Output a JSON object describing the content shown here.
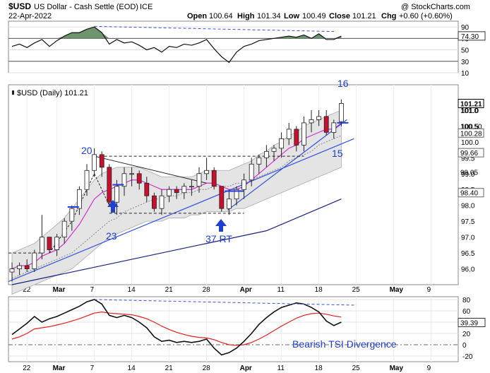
{
  "header": {
    "symbol": "$USD",
    "name": "US Dollar - Cash Settle (EOD)",
    "exchange": "ICE",
    "date": "22-Apr-2022",
    "watermark": "@ StockCharts.com",
    "open_label": "Open",
    "open": "100.64",
    "high_label": "High",
    "high": "101.34",
    "low_label": "Low",
    "low": "100.49",
    "close_label": "Close",
    "close": "101.21",
    "chg_label": "Chg",
    "chg": "+0.60 (+0.60%)"
  },
  "chart_data": [
    {
      "type": "line",
      "panel": "rsi",
      "ylim": [
        10,
        100
      ],
      "yticks": [
        90,
        70,
        50,
        30,
        10
      ],
      "current_value_label": "74.30",
      "current_value": 74.3,
      "reference_lines": [
        70,
        30
      ],
      "x": [
        "Feb-17",
        "Feb-18",
        "Feb-22",
        "Feb-23",
        "Feb-24",
        "Feb-25",
        "Feb-28",
        "Mar-01",
        "Mar-02",
        "Mar-03",
        "Mar-04",
        "Mar-07",
        "Mar-08",
        "Mar-09",
        "Mar-10",
        "Mar-11",
        "Mar-14",
        "Mar-15",
        "Mar-16",
        "Mar-17",
        "Mar-18",
        "Mar-21",
        "Mar-22",
        "Mar-23",
        "Mar-24",
        "Mar-25",
        "Mar-28",
        "Mar-29",
        "Mar-30",
        "Mar-31",
        "Apr-01",
        "Apr-04",
        "Apr-05",
        "Apr-06",
        "Apr-07",
        "Apr-08",
        "Apr-11",
        "Apr-12",
        "Apr-13",
        "Apr-14",
        "Apr-18",
        "Apr-19",
        "Apr-20",
        "Apr-21",
        "Apr-22"
      ],
      "values": [
        56,
        60,
        54,
        62,
        68,
        56,
        66,
        74,
        80,
        80,
        86,
        90,
        80,
        60,
        68,
        62,
        64,
        58,
        50,
        54,
        46,
        56,
        54,
        60,
        58,
        62,
        68,
        52,
        38,
        28,
        46,
        56,
        60,
        66,
        68,
        70,
        72,
        74,
        72,
        76,
        70,
        78,
        68,
        68,
        74
      ],
      "fill_above": 70
    },
    {
      "type": "candlestick",
      "panel": "price",
      "title": "$USD (Daily) 101.21",
      "ylim": [
        95.5,
        101.8
      ],
      "yticks": [
        96.0,
        96.5,
        97.0,
        97.5,
        98.0,
        98.5,
        99.0,
        99.5,
        100.0,
        100.5,
        101.0
      ],
      "xtick_labels": [
        "22",
        "Mar",
        "7",
        "14",
        "21",
        "28",
        "Apr",
        "11",
        "18",
        "25",
        "May",
        "9"
      ],
      "x": [
        "Feb-17",
        "Feb-18",
        "Feb-22",
        "Feb-23",
        "Feb-24",
        "Feb-25",
        "Feb-28",
        "Mar-01",
        "Mar-02",
        "Mar-03",
        "Mar-04",
        "Mar-07",
        "Mar-08",
        "Mar-09",
        "Mar-10",
        "Mar-11",
        "Mar-14",
        "Mar-15",
        "Mar-16",
        "Mar-17",
        "Mar-18",
        "Mar-21",
        "Mar-22",
        "Mar-23",
        "Mar-24",
        "Mar-25",
        "Mar-28",
        "Mar-29",
        "Mar-30",
        "Mar-31",
        "Apr-01",
        "Apr-04",
        "Apr-05",
        "Apr-06",
        "Apr-07",
        "Apr-08",
        "Apr-11",
        "Apr-12",
        "Apr-13",
        "Apr-14",
        "Apr-18",
        "Apr-19",
        "Apr-20",
        "Apr-21",
        "Apr-22"
      ],
      "ohlc": [
        [
          95.9,
          96.2,
          95.6,
          96.0
        ],
        [
          96.0,
          96.2,
          95.8,
          96.1
        ],
        [
          96.1,
          96.3,
          95.9,
          96.0
        ],
        [
          96.0,
          96.6,
          95.9,
          96.5
        ],
        [
          96.5,
          97.7,
          96.3,
          97.0
        ],
        [
          97.0,
          97.0,
          96.5,
          96.6
        ],
        [
          96.6,
          97.1,
          96.4,
          97.0
        ],
        [
          97.0,
          97.6,
          96.8,
          97.5
        ],
        [
          97.5,
          98.0,
          97.2,
          97.9
        ],
        [
          97.9,
          98.6,
          97.7,
          98.5
        ],
        [
          98.5,
          99.3,
          98.3,
          99.1
        ],
        [
          99.1,
          99.8,
          98.9,
          99.6
        ],
        [
          99.6,
          99.7,
          98.9,
          99.2
        ],
        [
          99.2,
          99.3,
          98.0,
          98.1
        ],
        [
          98.1,
          98.8,
          97.7,
          98.6
        ],
        [
          98.6,
          99.2,
          98.3,
          99.0
        ],
        [
          99.0,
          99.2,
          98.6,
          99.0
        ],
        [
          99.0,
          99.1,
          98.5,
          98.7
        ],
        [
          98.7,
          98.9,
          98.1,
          98.3
        ],
        [
          98.3,
          98.4,
          97.8,
          97.9
        ],
        [
          97.9,
          98.5,
          97.7,
          98.3
        ],
        [
          98.3,
          98.6,
          98.1,
          98.5
        ],
        [
          98.5,
          98.6,
          98.2,
          98.4
        ],
        [
          98.4,
          98.7,
          98.2,
          98.6
        ],
        [
          98.6,
          98.8,
          98.3,
          98.6
        ],
        [
          98.6,
          99.2,
          98.4,
          99.0
        ],
        [
          99.0,
          99.5,
          98.8,
          99.1
        ],
        [
          99.1,
          99.2,
          98.5,
          98.6
        ],
        [
          98.6,
          98.6,
          97.8,
          97.9
        ],
        [
          97.9,
          98.5,
          97.7,
          98.2
        ],
        [
          98.2,
          98.6,
          98.0,
          98.5
        ],
        [
          98.5,
          99.0,
          98.2,
          98.8
        ],
        [
          98.8,
          99.5,
          98.6,
          99.3
        ],
        [
          99.3,
          99.6,
          99.0,
          99.5
        ],
        [
          99.5,
          99.9,
          99.2,
          99.7
        ],
        [
          99.7,
          99.9,
          99.4,
          99.8
        ],
        [
          99.8,
          100.3,
          99.5,
          100.1
        ],
        [
          100.1,
          100.6,
          99.9,
          100.4
        ],
        [
          100.4,
          100.5,
          99.7,
          99.9
        ],
        [
          99.9,
          100.8,
          99.7,
          100.6
        ],
        [
          100.6,
          101.0,
          100.3,
          100.7
        ],
        [
          100.7,
          101.0,
          100.5,
          100.8
        ],
        [
          100.8,
          101.0,
          100.2,
          100.3
        ],
        [
          100.3,
          100.7,
          100.1,
          100.6
        ],
        [
          100.64,
          101.34,
          100.49,
          101.21
        ]
      ],
      "ma_short": [
        96.0,
        96.1,
        96.1,
        96.2,
        96.4,
        96.5,
        96.6,
        96.8,
        97.1,
        97.4,
        97.8,
        98.2,
        98.4,
        98.5,
        98.6,
        98.7,
        98.8,
        98.8,
        98.7,
        98.6,
        98.5,
        98.5,
        98.5,
        98.5,
        98.5,
        98.6,
        98.7,
        98.7,
        98.6,
        98.5,
        98.5,
        98.6,
        98.8,
        99.0,
        99.2,
        99.4,
        99.6,
        99.8,
        99.9,
        100.1,
        100.2,
        100.3,
        100.4,
        100.4,
        100.6
      ],
      "ma_mid": [
        95.7,
        95.8,
        95.9,
        96.0,
        96.1,
        96.2,
        96.3,
        96.4,
        96.5,
        96.7,
        96.9,
        97.1,
        97.3,
        97.5,
        97.6,
        97.8,
        97.9,
        98.0,
        98.1,
        98.2,
        98.2,
        98.3,
        98.3,
        98.4,
        98.4,
        98.5,
        98.5,
        98.6,
        98.6,
        98.6,
        98.7,
        98.7,
        98.8,
        98.9,
        99.0,
        99.1,
        99.2,
        99.4,
        99.5,
        99.6,
        99.7,
        99.9,
        100.0,
        100.1,
        100.2
      ],
      "ma_long": [
        95.5,
        95.55,
        95.6,
        95.65,
        95.7,
        95.75,
        95.8,
        95.85,
        95.9,
        95.95,
        96.0,
        96.05,
        96.1,
        96.15,
        96.2,
        96.25,
        96.3,
        96.35,
        96.4,
        96.45,
        96.5,
        96.55,
        96.6,
        96.65,
        96.7,
        96.75,
        96.8,
        96.85,
        96.9,
        96.95,
        97.0,
        97.05,
        97.1,
        97.15,
        97.2,
        97.3,
        97.4,
        97.5,
        97.6,
        97.7,
        97.8,
        97.9,
        98.0,
        98.1,
        98.2
      ],
      "band_upper": [
        96.5,
        96.6,
        96.7,
        96.8,
        97.0,
        97.2,
        97.4,
        97.6,
        97.9,
        98.2,
        98.5,
        98.8,
        99.0,
        99.1,
        99.2,
        99.2,
        99.2,
        99.2,
        99.1,
        99.0,
        98.9,
        98.9,
        98.9,
        98.9,
        98.9,
        99.0,
        99.1,
        99.1,
        99.1,
        99.1,
        99.2,
        99.3,
        99.4,
        99.6,
        99.7,
        99.9,
        100.0,
        100.2,
        100.3,
        100.5,
        100.6,
        100.7,
        100.8,
        100.9,
        101.0
      ],
      "band_lower": [
        95.2,
        95.3,
        95.4,
        95.5,
        95.6,
        95.7,
        95.8,
        95.9,
        96.0,
        96.2,
        96.4,
        96.6,
        96.8,
        97.0,
        97.1,
        97.2,
        97.3,
        97.4,
        97.5,
        97.5,
        97.5,
        97.6,
        97.6,
        97.6,
        97.7,
        97.7,
        97.8,
        97.8,
        97.8,
        97.8,
        97.9,
        97.9,
        98.0,
        98.1,
        98.2,
        98.3,
        98.4,
        98.5,
        98.6,
        98.7,
        98.8,
        98.9,
        99.0,
        99.1,
        99.2
      ],
      "price_labels": [
        "101.21",
        "101.0",
        "100.50",
        "100.28",
        "99.66",
        "99.05",
        "98.40"
      ],
      "annotations": [
        "20",
        "23",
        "37 RT",
        "16",
        "15"
      ]
    },
    {
      "type": "line",
      "panel": "tsi",
      "ylim": [
        -30,
        85
      ],
      "yticks": [
        80,
        60,
        40,
        20,
        0,
        -20
      ],
      "current_value_label": "39.39",
      "current_value": 39.39,
      "annotation": "Bearish TSI Divergence",
      "x": [
        "Feb-17",
        "Feb-18",
        "Feb-22",
        "Feb-23",
        "Feb-24",
        "Feb-25",
        "Feb-28",
        "Mar-01",
        "Mar-02",
        "Mar-03",
        "Mar-04",
        "Mar-07",
        "Mar-08",
        "Mar-09",
        "Mar-10",
        "Mar-11",
        "Mar-14",
        "Mar-15",
        "Mar-16",
        "Mar-17",
        "Mar-18",
        "Mar-21",
        "Mar-22",
        "Mar-23",
        "Mar-24",
        "Mar-25",
        "Mar-28",
        "Mar-29",
        "Mar-30",
        "Mar-31",
        "Apr-01",
        "Apr-04",
        "Apr-05",
        "Apr-06",
        "Apr-07",
        "Apr-08",
        "Apr-11",
        "Apr-12",
        "Apr-13",
        "Apr-14",
        "Apr-18",
        "Apr-19",
        "Apr-20",
        "Apr-21",
        "Apr-22"
      ],
      "series": [
        {
          "values": [
            18,
            28,
            38,
            50,
            40,
            46,
            50,
            56,
            62,
            68,
            76,
            80,
            72,
            52,
            48,
            52,
            48,
            40,
            30,
            14,
            6,
            8,
            4,
            6,
            4,
            6,
            10,
            -6,
            -18,
            -14,
            -6,
            6,
            20,
            36,
            48,
            58,
            66,
            70,
            74,
            72,
            66,
            58,
            42,
            34,
            40
          ]
        },
        {
          "values": [
            10,
            14,
            20,
            28,
            30,
            32,
            35,
            38,
            42,
            46,
            51,
            56,
            58,
            56,
            55,
            54,
            53,
            50,
            46,
            40,
            33,
            27,
            22,
            18,
            15,
            13,
            12,
            9,
            4,
            0,
            -1,
            0,
            4,
            10,
            17,
            25,
            33,
            40,
            47,
            52,
            55,
            56,
            54,
            51,
            49
          ]
        }
      ]
    }
  ]
}
